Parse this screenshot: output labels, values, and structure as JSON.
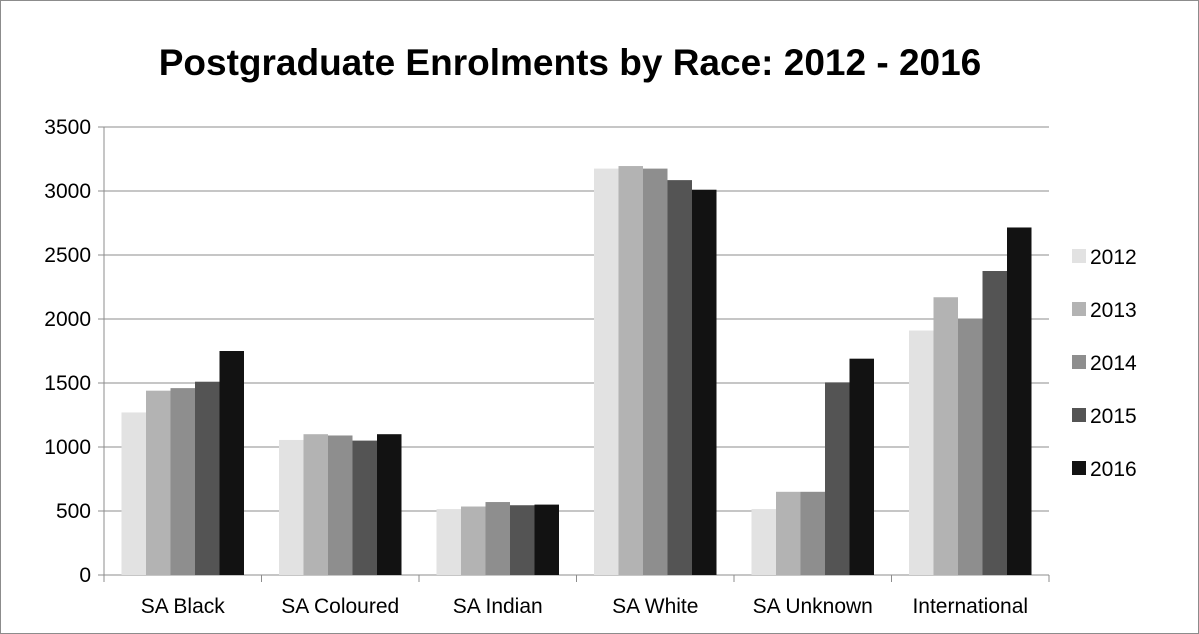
{
  "chart_data": {
    "type": "bar",
    "title": "Postgraduate Enrolments by Race: 2012 - 2016",
    "xlabel": "",
    "ylabel": "",
    "categories": [
      "SA Black",
      "SA Coloured",
      "SA Indian",
      "SA White",
      "SA Unknown",
      "International"
    ],
    "series": [
      {
        "name": "2012",
        "color": "#e2e2e2",
        "values": [
          1270,
          1055,
          515,
          3175,
          515,
          1910
        ]
      },
      {
        "name": "2013",
        "color": "#b3b3b3",
        "values": [
          1440,
          1100,
          535,
          3195,
          650,
          2170
        ]
      },
      {
        "name": "2014",
        "color": "#8e8e8e",
        "values": [
          1460,
          1090,
          570,
          3175,
          650,
          2000
        ]
      },
      {
        "name": "2015",
        "color": "#545454",
        "values": [
          1510,
          1050,
          545,
          3085,
          1505,
          2375
        ]
      },
      {
        "name": "2016",
        "color": "#121212",
        "values": [
          1750,
          1100,
          550,
          3010,
          1690,
          2715
        ]
      }
    ],
    "ylim": [
      0,
      3500
    ],
    "yticks": [
      0,
      500,
      1000,
      1500,
      2000,
      2500,
      3000,
      3500
    ],
    "grid": true,
    "legend_position": "right"
  }
}
